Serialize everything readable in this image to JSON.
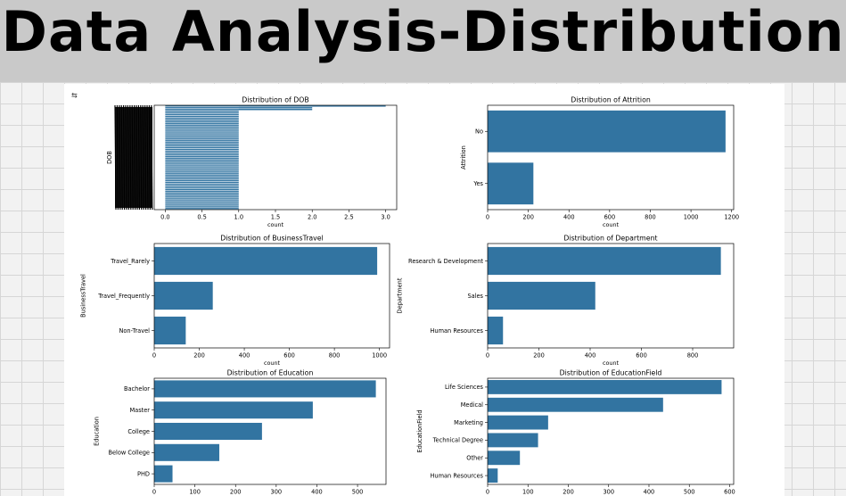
{
  "page": {
    "title": "Data Analysis-Distribution",
    "cell_icon": "⇆"
  },
  "colors": {
    "bar": "#3274a1",
    "background": "#ffffff",
    "axis": "#000000"
  },
  "chart_data": [
    {
      "type": "bar",
      "orientation": "horizontal",
      "title": "Distribution of DOB",
      "xlabel": "count",
      "ylabel": "DOB",
      "xlim": [
        -0.15,
        3.15
      ],
      "xticks": [
        0.0,
        0.5,
        1.0,
        1.5,
        2.0,
        2.5,
        3.0
      ],
      "xtick_labels": [
        "0.0",
        "0.5",
        "1.0",
        "1.5",
        "2.0",
        "2.5",
        "3.0"
      ],
      "dense_categories": true,
      "values": [
        3,
        2,
        2,
        1,
        1,
        1,
        1,
        1,
        1,
        1,
        1,
        1,
        1,
        1,
        1,
        1,
        1,
        1,
        1,
        1,
        1,
        1,
        1,
        1,
        1,
        1,
        1,
        1,
        1,
        1,
        1,
        1,
        1,
        1,
        1,
        1,
        1,
        1,
        1,
        1,
        1,
        1,
        1,
        1,
        1,
        1,
        1,
        1,
        1,
        1,
        1,
        1,
        1,
        1,
        1,
        1,
        1,
        1,
        1,
        1
      ]
    },
    {
      "type": "bar",
      "orientation": "horizontal",
      "title": "Distribution of Attrition",
      "xlabel": "count",
      "ylabel": "Attrition",
      "categories": [
        "No",
        "Yes"
      ],
      "values": [
        1170,
        225
      ],
      "xlim": [
        0,
        1210
      ],
      "xticks": [
        0,
        200,
        400,
        600,
        800,
        1000,
        1200
      ]
    },
    {
      "type": "bar",
      "orientation": "horizontal",
      "title": "Distribution of BusinessTravel",
      "xlabel": "count",
      "ylabel": "BusinessTravel",
      "categories": [
        "Travel_Rarely",
        "Travel_Frequently",
        "Non-Travel"
      ],
      "values": [
        990,
        260,
        140
      ],
      "xlim": [
        0,
        1045
      ],
      "xticks": [
        0,
        200,
        400,
        600,
        800,
        1000
      ]
    },
    {
      "type": "bar",
      "orientation": "horizontal",
      "title": "Distribution of Department",
      "xlabel": "count",
      "ylabel": "Department",
      "categories": [
        "Research & Development",
        "Sales",
        "Human Resources"
      ],
      "values": [
        910,
        420,
        60
      ],
      "xlim": [
        0,
        960
      ],
      "xticks": [
        0,
        200,
        400,
        600,
        800
      ]
    },
    {
      "type": "bar",
      "orientation": "horizontal",
      "title": "Distribution of Education",
      "xlabel": "",
      "ylabel": "Education",
      "categories": [
        "Bachelor",
        "Master",
        "College",
        "Below College",
        "PHD"
      ],
      "values": [
        545,
        390,
        265,
        160,
        45
      ],
      "xlim": [
        0,
        570
      ],
      "xticks": [
        0,
        100,
        200,
        300,
        400,
        500
      ]
    },
    {
      "type": "bar",
      "orientation": "horizontal",
      "title": "Distribution of EducationField",
      "xlabel": "",
      "ylabel": "EducationField",
      "categories": [
        "Life Sciences",
        "Medical",
        "Marketing",
        "Technical Degree",
        "Other",
        "Human Resources"
      ],
      "values": [
        580,
        435,
        150,
        125,
        80,
        25
      ],
      "xlim": [
        0,
        610
      ],
      "xticks": [
        0,
        100,
        200,
        300,
        400,
        500,
        600
      ]
    }
  ]
}
